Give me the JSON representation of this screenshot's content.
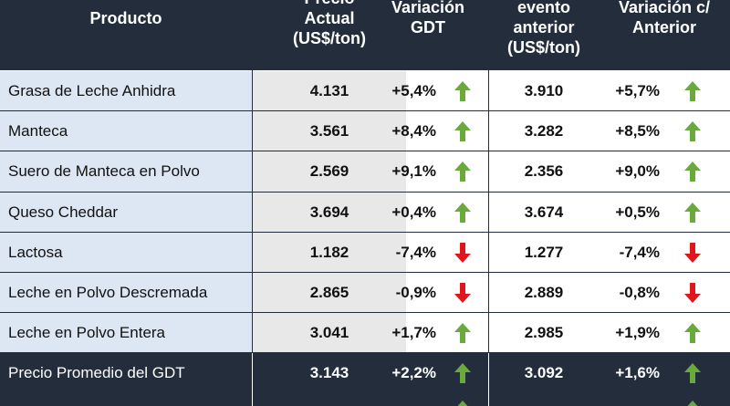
{
  "headers": {
    "product": [
      "Producto"
    ],
    "current_price": [
      "Precio",
      "Actual",
      "(US$/ton)"
    ],
    "variation_gdt": [
      "Variación",
      "GDT"
    ],
    "previous_price": [
      "evento",
      "anterior",
      "(US$/ton)"
    ],
    "variation_prev": [
      "Variación c/",
      "Anterior"
    ]
  },
  "rows": [
    {
      "product": "Grasa de Leche Anhidra",
      "price": "4.131",
      "var": "+5,4%",
      "var_dir": "up",
      "prev": "3.910",
      "var2": "+5,7%",
      "var2_dir": "up"
    },
    {
      "product": "Manteca",
      "price": "3.561",
      "var": "+8,4%",
      "var_dir": "up",
      "prev": "3.282",
      "var2": "+8,5%",
      "var2_dir": "up"
    },
    {
      "product": "Suero de Manteca en Polvo",
      "price": "2.569",
      "var": "+9,1%",
      "var_dir": "up",
      "prev": "2.356",
      "var2": "+9,0%",
      "var2_dir": "up"
    },
    {
      "product": "Queso Cheddar",
      "price": "3.694",
      "var": "+0,4%",
      "var_dir": "up",
      "prev": "3.674",
      "var2": "+0,5%",
      "var2_dir": "up"
    },
    {
      "product": "Lactosa",
      "price": "1.182",
      "var": "-7,4%",
      "var_dir": "down",
      "prev": "1.277",
      "var2": "-7,4%",
      "var2_dir": "down"
    },
    {
      "product": "Leche en Polvo Descremada",
      "price": "2.865",
      "var": "-0,9%",
      "var_dir": "down",
      "prev": "2.889",
      "var2": "-0,8%",
      "var2_dir": "down"
    },
    {
      "product": "Leche en Polvo Entera",
      "price": "3.041",
      "var": "+1,7%",
      "var_dir": "up",
      "prev": "2.985",
      "var2": "+1,9%",
      "var2_dir": "up"
    }
  ],
  "footer": {
    "product": "Precio Promedio del GDT",
    "price": "3.143",
    "var": "+2,2%",
    "var_dir": "up",
    "prev": "3.092",
    "var2": "+1,6%",
    "var2_dir": "up"
  },
  "colors": {
    "up": "#6aaa3c",
    "down": "#e0161c",
    "header_bg": "#232d3b"
  }
}
